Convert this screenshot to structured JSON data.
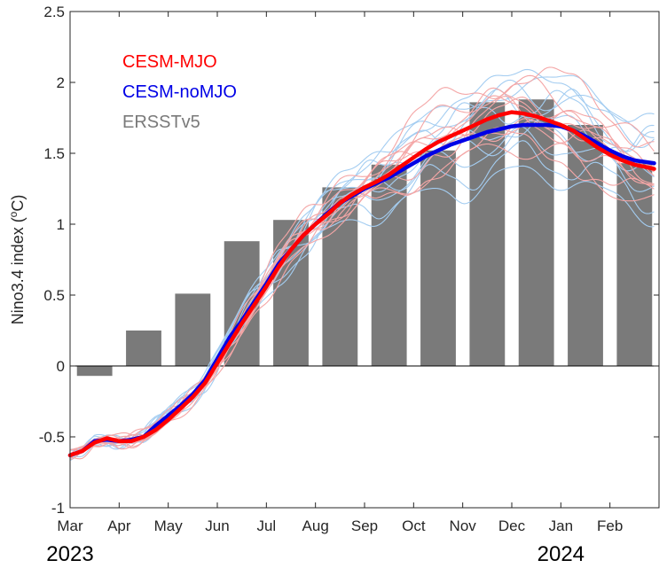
{
  "chart_data": {
    "type": "bar",
    "ylabel": "Nino3.4 index (",
    "ylabel_sup": "o",
    "ylabel_unit": "C)",
    "ylim": [
      -1,
      2.5
    ],
    "yticks": [
      -1,
      -0.5,
      0,
      0.5,
      1,
      1.5,
      2,
      2.5
    ],
    "ytick_labels": [
      "-1",
      "-0.5",
      "0",
      "0.5",
      "1",
      "1.5",
      "2",
      "2.5"
    ],
    "categories": [
      "Mar",
      "Apr",
      "May",
      "Jun",
      "Jul",
      "Aug",
      "Sep",
      "Oct",
      "Nov",
      "Dec",
      "Jan",
      "Feb"
    ],
    "year_labels": [
      {
        "text": "2023",
        "month_index": 0
      },
      {
        "text": "2024",
        "month_index": 10
      }
    ],
    "bars": {
      "name": "ERSSTv5",
      "color": "#7a7a7a",
      "values": [
        -0.07,
        0.25,
        0.51,
        0.88,
        1.03,
        1.26,
        1.42,
        1.52,
        1.86,
        1.88,
        1.7,
        1.43
      ]
    },
    "series": [
      {
        "name": "CESM-noMJO",
        "color": "#0000e6",
        "x": [
          0,
          0.25,
          0.5,
          0.75,
          1.0,
          1.25,
          1.5,
          1.75,
          2.0,
          2.25,
          2.5,
          2.75,
          3.0,
          3.25,
          3.5,
          3.75,
          4.0,
          4.25,
          4.5,
          4.75,
          5.0,
          5.25,
          5.5,
          5.75,
          6.0,
          6.25,
          6.5,
          6.75,
          7.0,
          7.25,
          7.5,
          7.75,
          8.0,
          8.25,
          8.5,
          8.75,
          9.0,
          9.25,
          9.5,
          9.75,
          10.0,
          10.25,
          10.5,
          10.75,
          11.0,
          11.25,
          11.5,
          11.9
        ],
        "values": [
          -0.63,
          -0.6,
          -0.53,
          -0.52,
          -0.53,
          -0.52,
          -0.5,
          -0.42,
          -0.35,
          -0.28,
          -0.2,
          -0.1,
          0.05,
          0.2,
          0.32,
          0.45,
          0.58,
          0.72,
          0.82,
          0.92,
          1.0,
          1.08,
          1.15,
          1.2,
          1.25,
          1.29,
          1.33,
          1.38,
          1.43,
          1.48,
          1.52,
          1.56,
          1.59,
          1.62,
          1.65,
          1.67,
          1.69,
          1.7,
          1.7,
          1.7,
          1.69,
          1.66,
          1.62,
          1.57,
          1.52,
          1.48,
          1.45,
          1.43
        ]
      },
      {
        "name": "CESM-MJO",
        "color": "#ff0000",
        "x": [
          0,
          0.25,
          0.5,
          0.75,
          1.0,
          1.25,
          1.5,
          1.75,
          2.0,
          2.25,
          2.5,
          2.75,
          3.0,
          3.25,
          3.5,
          3.75,
          4.0,
          4.25,
          4.5,
          4.75,
          5.0,
          5.25,
          5.5,
          5.75,
          6.0,
          6.25,
          6.5,
          6.75,
          7.0,
          7.25,
          7.5,
          7.75,
          8.0,
          8.25,
          8.5,
          8.75,
          9.0,
          9.25,
          9.5,
          9.75,
          10.0,
          10.25,
          10.5,
          10.75,
          11.0,
          11.25,
          11.5,
          11.9
        ],
        "values": [
          -0.63,
          -0.6,
          -0.54,
          -0.51,
          -0.53,
          -0.53,
          -0.5,
          -0.45,
          -0.38,
          -0.3,
          -0.22,
          -0.12,
          0.02,
          0.16,
          0.3,
          0.43,
          0.56,
          0.7,
          0.82,
          0.92,
          1.0,
          1.07,
          1.15,
          1.21,
          1.26,
          1.3,
          1.35,
          1.41,
          1.47,
          1.53,
          1.58,
          1.62,
          1.66,
          1.7,
          1.74,
          1.77,
          1.79,
          1.78,
          1.76,
          1.73,
          1.7,
          1.66,
          1.6,
          1.54,
          1.49,
          1.45,
          1.42,
          1.39
        ]
      }
    ],
    "ensemble": {
      "light_red": "#f4a6a6",
      "light_blue": "#a4cdf1"
    },
    "legend": {
      "position": "top-left",
      "entries": [
        {
          "label": "CESM-MJO",
          "color": "#ff0000"
        },
        {
          "label": "CESM-noMJO",
          "color": "#0000e6"
        },
        {
          "label": "ERSSTv5",
          "color": "#7a7a7a"
        }
      ]
    },
    "grid": false
  }
}
